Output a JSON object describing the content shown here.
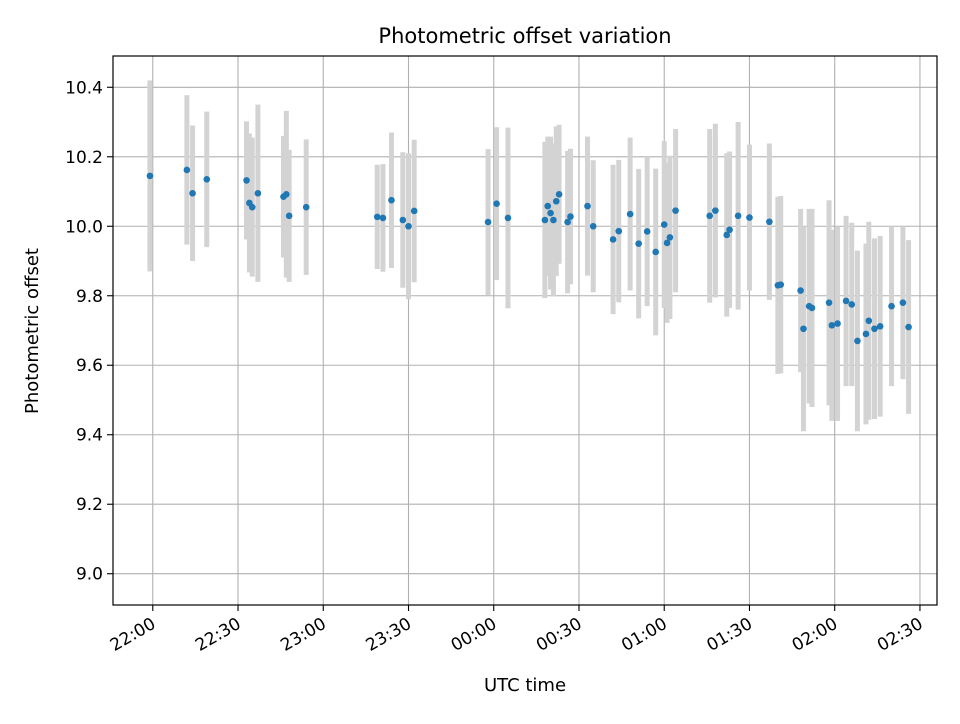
{
  "chart_data": {
    "type": "scatter",
    "title": "Photometric offset variation",
    "xlabel": "UTC time",
    "ylabel": "Photometric offset",
    "xticks": [
      "22:00",
      "22:30",
      "23:00",
      "23:30",
      "00:00",
      "00:30",
      "01:00",
      "01:30",
      "02:00",
      "02:30"
    ],
    "yticks": [
      "9.0",
      "9.2",
      "9.4",
      "9.6",
      "9.8",
      "10.0",
      "10.2",
      "10.4"
    ],
    "xlim_minutes_since_22_00": [
      -14,
      276
    ],
    "ylim": [
      8.91,
      10.49
    ],
    "grid": true,
    "colors": {
      "points": "#1f77b4",
      "errorbars": "#d3d3d3",
      "grid": "#b0b0b0"
    },
    "x_minutes_since_22_00": [
      -1,
      12,
      14,
      19,
      33,
      34,
      35,
      37,
      46,
      47,
      48,
      54,
      79,
      81,
      84,
      88,
      90,
      92,
      118,
      121,
      125,
      138,
      139,
      140,
      141,
      142,
      143,
      146,
      147,
      153,
      155,
      162,
      164,
      168,
      171,
      174,
      177,
      180,
      181,
      182,
      184,
      196,
      198,
      202,
      203,
      206,
      210,
      217,
      220,
      221,
      228,
      229,
      231,
      232,
      238,
      239,
      241,
      244,
      246,
      248,
      251,
      252,
      254,
      256,
      260,
      264,
      266
    ],
    "y": [
      10.145,
      10.162,
      10.095,
      10.135,
      10.132,
      10.067,
      10.055,
      10.095,
      10.085,
      10.092,
      10.03,
      10.055,
      10.027,
      10.024,
      10.075,
      10.018,
      10.0,
      10.044,
      10.012,
      10.065,
      10.024,
      10.018,
      10.058,
      10.038,
      10.018,
      10.072,
      10.092,
      10.012,
      10.028,
      10.058,
      10.0,
      9.962,
      9.986,
      10.035,
      9.95,
      9.985,
      9.926,
      10.005,
      9.952,
      9.968,
      10.045,
      10.03,
      10.045,
      9.975,
      9.99,
      10.03,
      10.025,
      10.013,
      9.83,
      9.832,
      9.815,
      9.705,
      9.77,
      9.765,
      9.78,
      9.715,
      9.72,
      9.785,
      9.775,
      9.67,
      9.69,
      9.728,
      9.705,
      9.712,
      9.77,
      9.78,
      9.71
    ],
    "y_err": [
      0.275,
      0.215,
      0.195,
      0.195,
      0.17,
      0.2,
      0.2,
      0.255,
      0.175,
      0.24,
      0.19,
      0.195,
      0.15,
      0.155,
      0.195,
      0.195,
      0.21,
      0.205,
      0.21,
      0.22,
      0.26,
      0.225,
      0.2,
      0.22,
      0.22,
      0.215,
      0.2,
      0.205,
      0.195,
      0.2,
      0.19,
      0.215,
      0.205,
      0.22,
      0.215,
      0.215,
      0.24,
      0.24,
      0.23,
      0.235,
      0.235,
      0.25,
      0.25,
      0.235,
      0.225,
      0.27,
      0.21,
      0.225,
      0.255,
      0.255,
      0.235,
      0.295,
      0.28,
      0.285,
      0.295,
      0.275,
      0.28,
      0.245,
      0.235,
      0.26,
      0.26,
      0.285,
      0.26,
      0.26,
      0.23,
      0.22,
      0.25
    ]
  }
}
